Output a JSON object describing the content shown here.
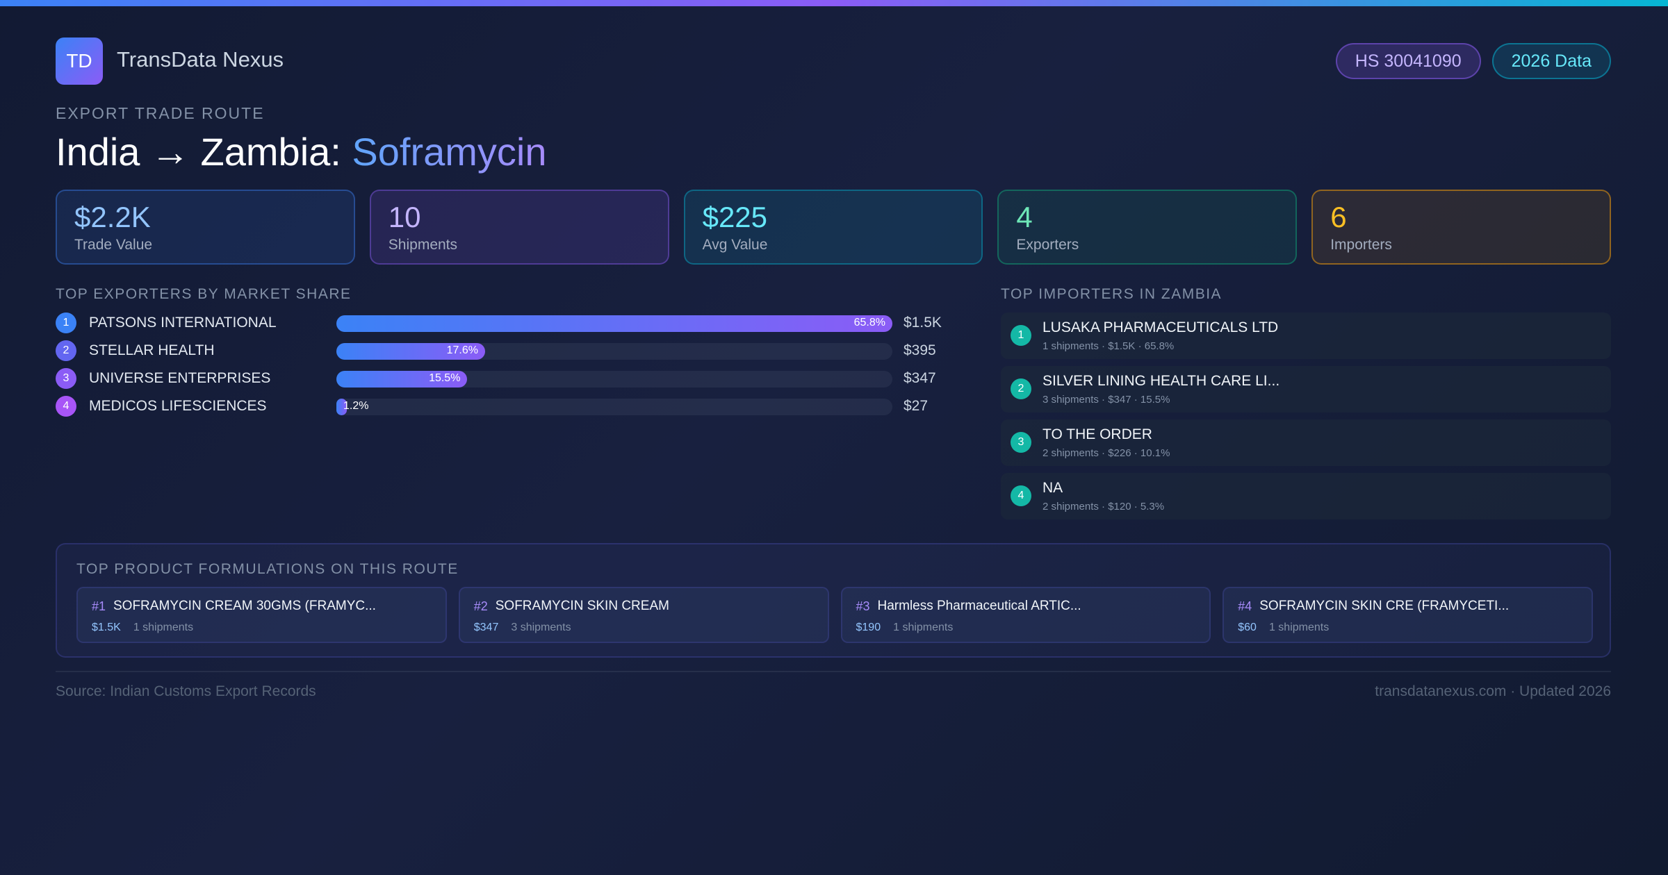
{
  "header": {
    "logo": "TD",
    "brand": "TransData Nexus",
    "badges": [
      "HS 30041090",
      "2026 Data"
    ]
  },
  "route": {
    "eyebrow": "EXPORT TRADE ROUTE",
    "title": "India → Zambia: ",
    "product": "Soframycin"
  },
  "stats": [
    {
      "value": "$2.2K",
      "label": "Trade Value"
    },
    {
      "value": "10",
      "label": "Shipments"
    },
    {
      "value": "$225",
      "label": "Avg Value"
    },
    {
      "value": "4",
      "label": "Exporters"
    },
    {
      "value": "6",
      "label": "Importers"
    }
  ],
  "exporters": {
    "heading": "TOP EXPORTERS BY MARKET SHARE",
    "rows": [
      {
        "rank": "1",
        "name": "PATSONS INTERNATIONAL",
        "share": 65.8,
        "share_label": "65.8%",
        "value": "$1.5K"
      },
      {
        "rank": "2",
        "name": "STELLAR HEALTH",
        "share": 17.6,
        "share_label": "17.6%",
        "value": "$395"
      },
      {
        "rank": "3",
        "name": "UNIVERSE ENTERPRISES",
        "share": 15.5,
        "share_label": "15.5%",
        "value": "$347"
      },
      {
        "rank": "4",
        "name": "MEDICOS LIFESCIENCES",
        "share": 1.2,
        "share_label": "1.2%",
        "value": "$27"
      }
    ]
  },
  "importers": {
    "heading": "TOP IMPORTERS IN ZAMBIA",
    "rows": [
      {
        "rank": "1",
        "name": "LUSAKA PHARMACEUTICALS LTD",
        "details": "1 shipments · $1.5K · 65.8%"
      },
      {
        "rank": "2",
        "name": "SILVER LINING HEALTH CARE LI...",
        "details": "3 shipments · $347 · 15.5%"
      },
      {
        "rank": "3",
        "name": "TO THE ORDER",
        "details": "2 shipments · $226 · 10.1%"
      },
      {
        "rank": "4",
        "name": "NA",
        "details": "2 shipments · $120 · 5.3%"
      }
    ]
  },
  "formulations": {
    "heading": "TOP PRODUCT FORMULATIONS ON THIS ROUTE",
    "items": [
      {
        "rank": "#1",
        "name": "SOFRAMYCIN CREAM 30GMS (FRAMYC...",
        "value": "$1.5K",
        "shipments": "1 shipments"
      },
      {
        "rank": "#2",
        "name": "SOFRAMYCIN SKIN CREAM",
        "value": "$347",
        "shipments": "3 shipments"
      },
      {
        "rank": "#3",
        "name": "Harmless Pharmaceutical ARTIC...",
        "value": "$190",
        "shipments": "1 shipments"
      },
      {
        "rank": "#4",
        "name": "SOFRAMYCIN SKIN CRE (FRAMYCETI...",
        "value": "$60",
        "shipments": "1 shipments"
      }
    ]
  },
  "footer": {
    "source": "Source: Indian Customs Export Records",
    "site": "transdatanexus.com · Updated 2026"
  }
}
